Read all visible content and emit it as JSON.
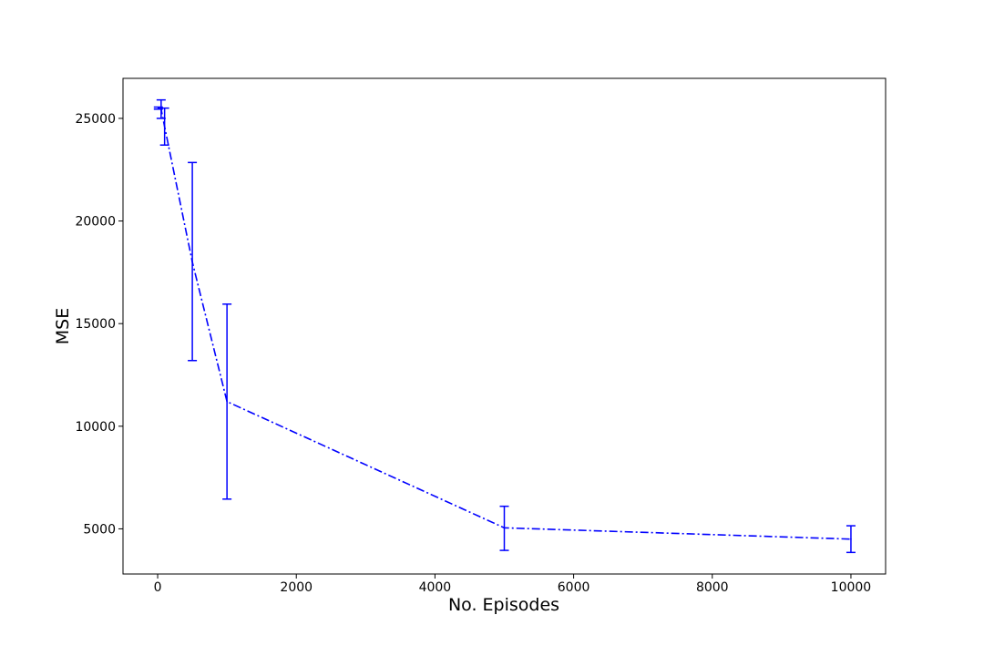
{
  "chart_data": {
    "type": "line",
    "xlabel": "No. Episodes",
    "ylabel": "MSE",
    "xlim": [
      -500,
      10500
    ],
    "ylim": [
      2800,
      26950
    ],
    "xticks": [
      0,
      2000,
      4000,
      6000,
      8000,
      10000
    ],
    "yticks": [
      5000,
      10000,
      15000,
      20000,
      25000
    ],
    "line_style": "dash-dot",
    "errorbars": true,
    "grid": false,
    "series": [
      {
        "color": "#0000ff",
        "points": [
          {
            "x": 10,
            "y": 25500,
            "err_low": 25450,
            "err_high": 25550
          },
          {
            "x": 50,
            "y": 25450,
            "err_low": 25000,
            "err_high": 25900
          },
          {
            "x": 100,
            "y": 24600,
            "err_low": 23700,
            "err_high": 25500
          },
          {
            "x": 500,
            "y": 18000,
            "err_low": 13200,
            "err_high": 22850
          },
          {
            "x": 1000,
            "y": 11200,
            "err_low": 6450,
            "err_high": 15950
          },
          {
            "x": 5000,
            "y": 5050,
            "err_low": 3950,
            "err_high": 6100
          },
          {
            "x": 10000,
            "y": 4500,
            "err_low": 3850,
            "err_high": 5150
          }
        ]
      }
    ]
  }
}
